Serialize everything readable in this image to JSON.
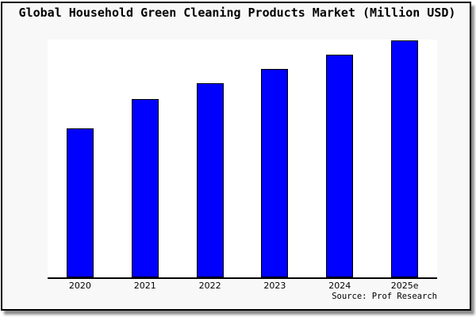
{
  "chart_data": {
    "type": "bar",
    "title": "Global Household Green Cleaning Products Market (Million USD)",
    "categories": [
      "2020",
      "2021",
      "2022",
      "2023",
      "2024",
      "2025e"
    ],
    "values": [
      62.7,
      75.0,
      81.6,
      87.7,
      93.6,
      99.8
    ],
    "values_note": "y-axis has no ticks or labels; values estimated as percent of plot height",
    "xlabel": "",
    "ylabel": "",
    "ylim": [
      0,
      100
    ],
    "gridlines": false,
    "legend": "none",
    "y_axis": "hidden",
    "x_axis": "bottom spine only, no tick marks",
    "source_note": "Source: Prof Research",
    "colors": {
      "bar_fill": "#0000ff",
      "bar_edge": "#000000",
      "plot_background": "#ffffff",
      "figure_background": "#f8f8f8",
      "frame_border": "#000000",
      "text": "#000000"
    }
  }
}
